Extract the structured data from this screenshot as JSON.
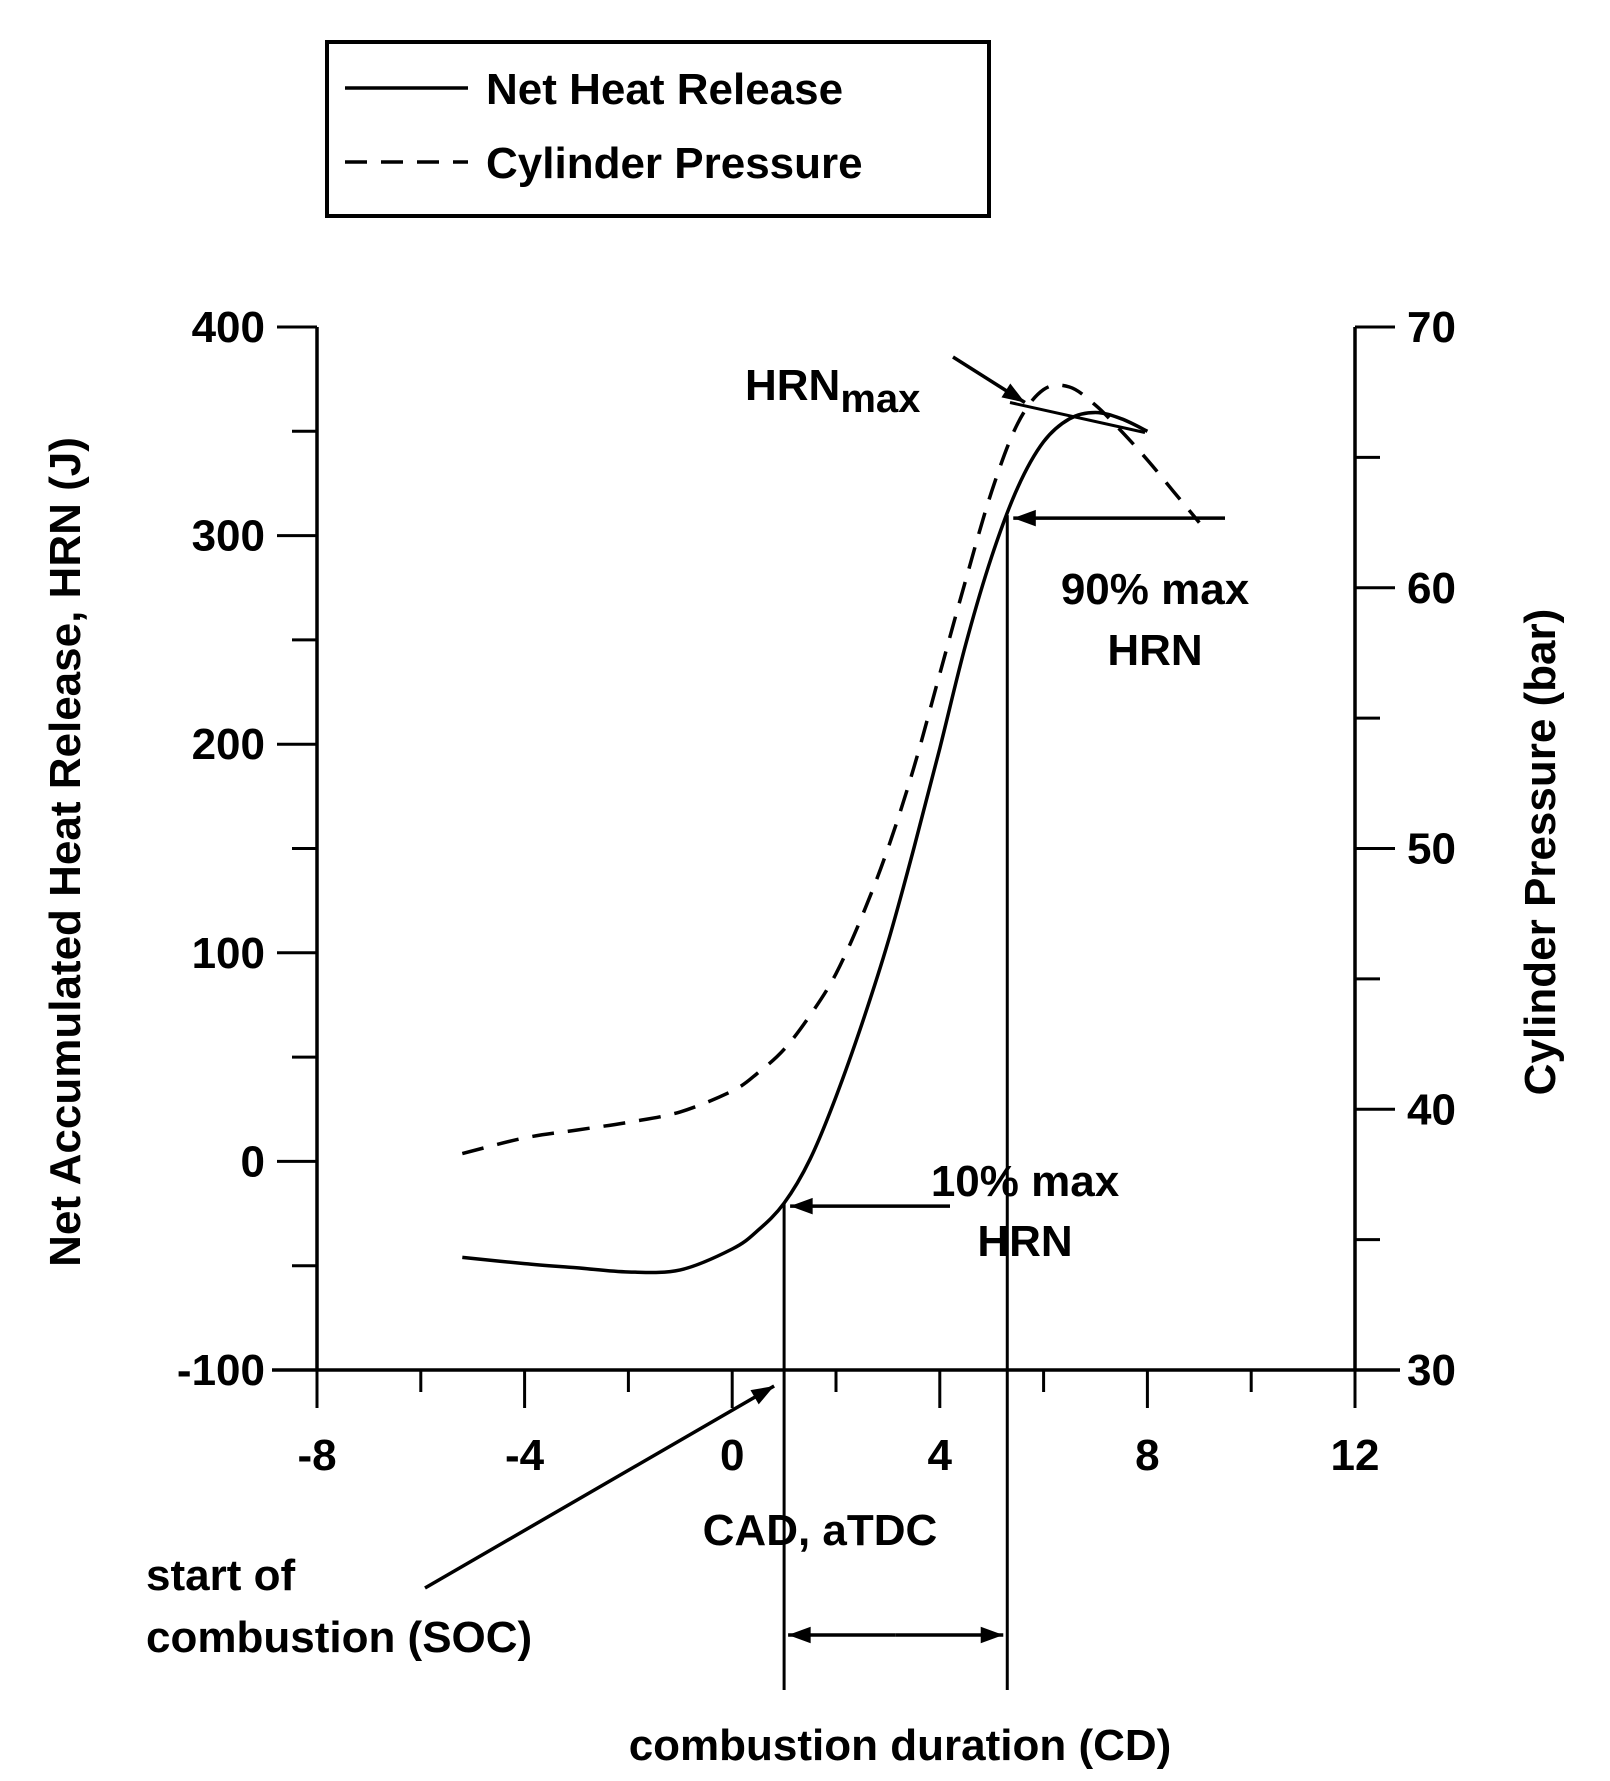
{
  "chart_data": {
    "type": "line",
    "title": "",
    "xlabel": "CAD, aTDC",
    "ylabel": "Net Accumulated Heat Release, HRN (J)",
    "y2label": "Cylinder Pressure (bar)",
    "xlim": [
      -8,
      12
    ],
    "ylim": [
      -100,
      400
    ],
    "y2lim": [
      30,
      70
    ],
    "xticks": [
      "-8",
      "-4",
      "0",
      "4",
      "8",
      "12"
    ],
    "yticks": [
      "-100",
      "0",
      "100",
      "200",
      "300",
      "400"
    ],
    "y2ticks": [
      "30",
      "40",
      "50",
      "60",
      "70"
    ],
    "grid": false,
    "legend_position": "top-left",
    "legend": [
      {
        "label": "Net Heat Release",
        "style": "solid"
      },
      {
        "label": "Cylinder Pressure",
        "style": "dashed"
      }
    ],
    "series": [
      {
        "name": "Net Heat Release",
        "axis": "left",
        "x": [
          -5.2,
          -4,
          -3,
          -2,
          -1,
          0,
          0.5,
          1,
          1.5,
          2,
          2.5,
          3,
          3.5,
          4,
          4.5,
          5,
          5.5,
          6,
          6.5,
          7,
          7.5,
          8
        ],
        "y": [
          -46,
          -49,
          -51,
          -53,
          -52,
          -42,
          -33,
          -20,
          1,
          31,
          66,
          105,
          150,
          198,
          248,
          290,
          323,
          345,
          356,
          359,
          356,
          350
        ]
      },
      {
        "name": "Cylinder Pressure",
        "axis": "right",
        "x": [
          -5.2,
          -4,
          -3,
          -2,
          -1,
          0,
          0.5,
          1,
          1.5,
          2,
          2.5,
          3,
          3.5,
          4,
          4.5,
          5,
          5.5,
          6,
          6.5,
          7,
          7.5,
          8,
          8.5,
          9
        ],
        "y": [
          38.3,
          38.9,
          39.2,
          39.5,
          39.9,
          40.7,
          41.4,
          42.3,
          43.6,
          45.2,
          47.4,
          50.0,
          53.1,
          56.7,
          60.3,
          63.7,
          66.3,
          67.6,
          67.7,
          67.0,
          66.0,
          64.9,
          63.7,
          62.5
        ]
      }
    ],
    "annotations": {
      "hrn_max": "HRNmax",
      "hrn_max_main": "HRN",
      "hrn_max_sub": "max",
      "p90_line1": "90% max",
      "p90_line2": "HRN",
      "p10_line1": "10% max",
      "p10_line2": "HRN",
      "soc_line1": "start of",
      "soc_line2": "combustion (SOC)",
      "cd": "combustion duration (CD)",
      "soc_x": 1.0,
      "p10_x": 1.0,
      "p90_x": 5.3,
      "hrn_max_x": 6.7
    }
  }
}
